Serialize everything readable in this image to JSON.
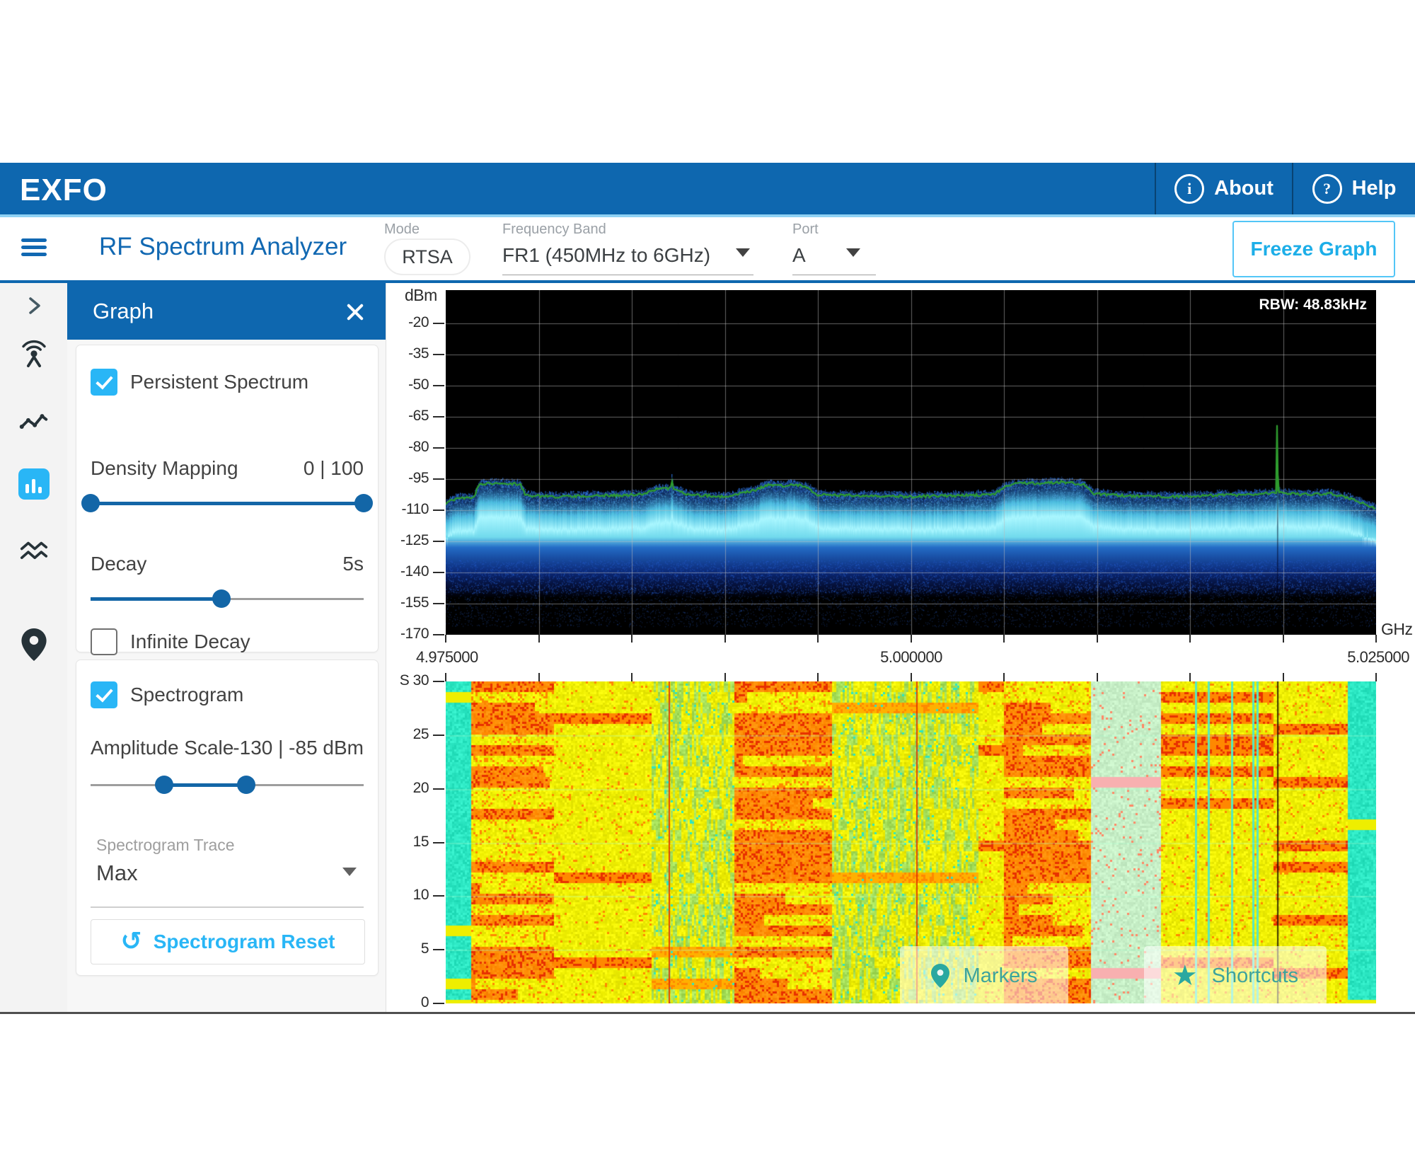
{
  "header": {
    "logo": "EXFO",
    "about_label": "About",
    "help_label": "Help"
  },
  "toolbar": {
    "title": "RF Spectrum Analyzer",
    "mode_label": "Mode",
    "mode_value": "RTSA",
    "frequency_band_label": "Frequency Band",
    "frequency_band_value": "FR1 (450MHz to 6GHz)",
    "port_label": "Port",
    "port_value": "A",
    "freeze_button_label": "Freeze Graph"
  },
  "sidebar": {
    "icons": [
      "expand-chevron",
      "antenna",
      "trend-line",
      "graph-bars",
      "waves",
      "location-pin"
    ],
    "active_icon": "graph-bars",
    "active_color": "#29b6f6"
  },
  "graph_panel": {
    "title": "Graph",
    "persistent_spectrum": {
      "label": "Persistent Spectrum",
      "checked": true
    },
    "density_mapping": {
      "label": "Density Mapping",
      "value": "0 | 100",
      "slider": {
        "thumbs_pct": [
          0,
          100
        ],
        "fill_pct": [
          0,
          100
        ]
      }
    },
    "decay": {
      "label": "Decay",
      "value": "5s",
      "slider": {
        "thumbs_pct": [
          48
        ],
        "fill_pct": [
          0,
          48
        ]
      }
    },
    "infinite_decay": {
      "label": "Infinite Decay",
      "checked": false
    },
    "spectrogram": {
      "label": "Spectrogram",
      "checked": true
    },
    "amplitude_scale": {
      "label": "Amplitude Scale",
      "value": "-130 | -85 dBm",
      "slider": {
        "thumbs_pct": [
          27,
          57
        ],
        "fill_pct": [
          27,
          57
        ]
      }
    },
    "spectrogram_trace": {
      "label": "Spectrogram Trace",
      "value": "Max"
    },
    "reset_button_label": "Spectrogram Reset"
  },
  "overlays": {
    "markers_label": "Markers",
    "shortcuts_label": "Shortcuts",
    "accent_color": "#2aa8a0"
  },
  "chart_data": [
    {
      "type": "persistence_spectrum",
      "ylabel": "dBm",
      "x_unit": "GHz",
      "rbw_label": "RBW: 48.83kHz",
      "ylim": [
        -170,
        -4
      ],
      "yticks": [
        -20,
        -35,
        -50,
        -65,
        -80,
        -95,
        -110,
        -125,
        -140,
        -155,
        -170
      ],
      "x_range_ghz": [
        4.975,
        5.025
      ],
      "xtick_labels": [
        "4.975000",
        "5.000000",
        "5.025000"
      ],
      "x_divisions": 10,
      "grid": true,
      "bg_color": "#000000",
      "trace_color": "#2f9e2f",
      "noise_core_color": "#a0f4ff",
      "spike_frac": 0.8937,
      "spike_peak_dbm": -69,
      "trace_points": [
        [
          0,
          -107
        ],
        [
          0.012,
          -104
        ],
        [
          0.03,
          -104
        ],
        [
          0.036,
          -97.5
        ],
        [
          0.055,
          -97
        ],
        [
          0.08,
          -97.5
        ],
        [
          0.086,
          -103
        ],
        [
          0.12,
          -103.5
        ],
        [
          0.16,
          -103
        ],
        [
          0.21,
          -102.5
        ],
        [
          0.225,
          -100
        ],
        [
          0.2418,
          -99.5
        ],
        [
          0.2428,
          -92.6
        ],
        [
          0.2438,
          -99.5
        ],
        [
          0.26,
          -102.5
        ],
        [
          0.3,
          -103.5
        ],
        [
          0.335,
          -100
        ],
        [
          0.345,
          -97.8
        ],
        [
          0.36,
          -98.3
        ],
        [
          0.375,
          -97.6
        ],
        [
          0.388,
          -99
        ],
        [
          0.4,
          -102.5
        ],
        [
          0.45,
          -103
        ],
        [
          0.5,
          -103.5
        ],
        [
          0.55,
          -103
        ],
        [
          0.59,
          -102.5
        ],
        [
          0.6,
          -98.5
        ],
        [
          0.62,
          -96.8
        ],
        [
          0.64,
          -97.3
        ],
        [
          0.66,
          -96.4
        ],
        [
          0.685,
          -97.5
        ],
        [
          0.696,
          -102
        ],
        [
          0.73,
          -103
        ],
        [
          0.78,
          -103.5
        ],
        [
          0.83,
          -102.8
        ],
        [
          0.87,
          -102.5
        ],
        [
          0.8929,
          -101.5
        ],
        [
          0.8937,
          -69
        ],
        [
          0.8945,
          -101.5
        ],
        [
          0.92,
          -102.5
        ],
        [
          0.95,
          -102
        ],
        [
          0.97,
          -104
        ],
        [
          0.985,
          -106.5
        ],
        [
          1,
          -109
        ]
      ],
      "noise_band": {
        "top_offset_db": 1,
        "core_top_db": -106,
        "core_bottom_db": -123,
        "fade_bottom_db": -150
      }
    },
    {
      "type": "spectrogram",
      "ylabel_prefix": "S",
      "yticks": [
        30,
        25,
        20,
        15,
        10,
        5,
        0
      ],
      "time_span_s": 30,
      "palette": {
        "teal": "#2be6c2",
        "yellow": "#eeee00",
        "orange": "#ff8800",
        "red": "#e83000",
        "green": "#a6e05a",
        "pale": "#c8f0c8",
        "cyan_accent": "#55e8c0"
      },
      "bands": [
        [
          0,
          0.027,
          "teal"
        ],
        [
          0.027,
          0.116,
          "hot"
        ],
        [
          0.116,
          0.222,
          "warm"
        ],
        [
          0.222,
          0.31,
          "mixed"
        ],
        [
          0.31,
          0.415,
          "hot"
        ],
        [
          0.415,
          0.573,
          "mixed2"
        ],
        [
          0.573,
          0.6,
          "warm"
        ],
        [
          0.6,
          0.694,
          "hot2"
        ],
        [
          0.694,
          0.769,
          "cool"
        ],
        [
          0.769,
          0.89,
          "warm2"
        ],
        [
          0.89,
          0.97,
          "warm"
        ],
        [
          0.97,
          1,
          "teal"
        ]
      ],
      "red_lines": [
        0.2395,
        0.506
      ],
      "dark_line": 0.8937
    }
  ]
}
